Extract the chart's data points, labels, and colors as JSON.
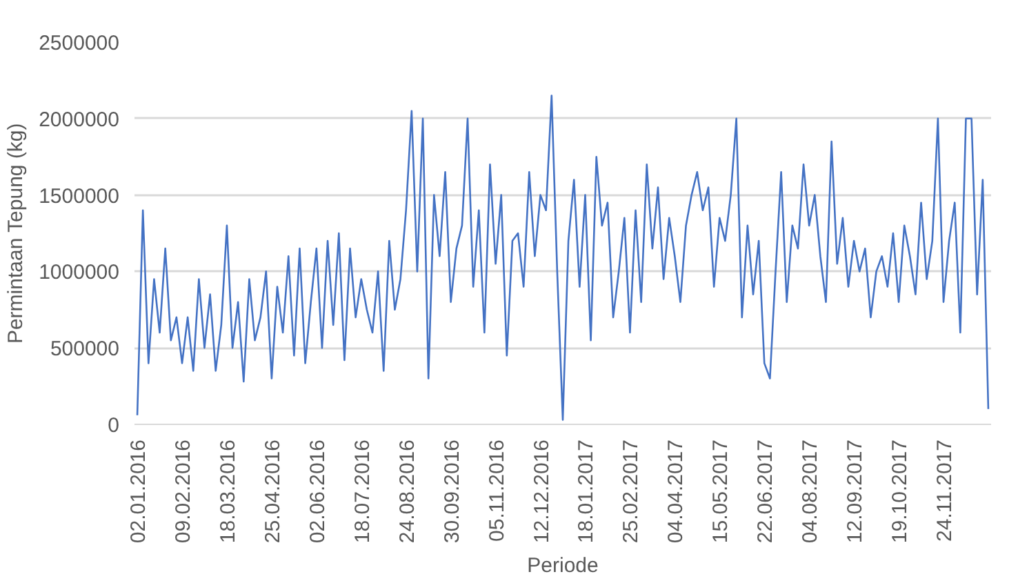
{
  "chart_data": {
    "type": "line",
    "xlabel": "Periode",
    "ylabel": "Permintaan Tepung (kg)",
    "categories": [
      "02.01.2016",
      null,
      null,
      null,
      null,
      null,
      null,
      null,
      "09.02.2016",
      null,
      null,
      null,
      null,
      null,
      null,
      null,
      "18.03.2016",
      null,
      null,
      null,
      null,
      null,
      null,
      null,
      "25.04.2016",
      null,
      null,
      null,
      null,
      null,
      null,
      null,
      "02.06.2016",
      null,
      null,
      null,
      null,
      null,
      null,
      null,
      "18.07.2016",
      null,
      null,
      null,
      null,
      null,
      null,
      null,
      "24.08.2016",
      null,
      null,
      null,
      null,
      null,
      null,
      null,
      "30.09.2016",
      null,
      null,
      null,
      null,
      null,
      null,
      null,
      "05.11.2016",
      null,
      null,
      null,
      null,
      null,
      null,
      null,
      "12.12.2016",
      null,
      null,
      null,
      null,
      null,
      null,
      null,
      "18.01.2017",
      null,
      null,
      null,
      null,
      null,
      null,
      null,
      "25.02.2017",
      null,
      null,
      null,
      null,
      null,
      null,
      null,
      "04.04.2017",
      null,
      null,
      null,
      null,
      null,
      null,
      null,
      "15.05.2017",
      null,
      null,
      null,
      null,
      null,
      null,
      null,
      "22.06.2017",
      null,
      null,
      null,
      null,
      null,
      null,
      null,
      "04.08.2017",
      null,
      null,
      null,
      null,
      null,
      null,
      null,
      "12.09.2017",
      null,
      null,
      null,
      null,
      null,
      null,
      null,
      "19.10.2017",
      null,
      null,
      null,
      null,
      null,
      null,
      null,
      "24.11.2017",
      null,
      null,
      null,
      null,
      null,
      null,
      null,
      null
    ],
    "series": [
      {
        "color": "#4472c4",
        "values": [
          60000,
          1400000,
          400000,
          950000,
          600000,
          1150000,
          550000,
          700000,
          400000,
          700000,
          350000,
          950000,
          500000,
          850000,
          350000,
          650000,
          1300000,
          500000,
          800000,
          280000,
          950000,
          550000,
          700000,
          1000000,
          300000,
          900000,
          600000,
          1100000,
          450000,
          1150000,
          400000,
          800000,
          1150000,
          500000,
          1200000,
          650000,
          1250000,
          420000,
          1150000,
          700000,
          950000,
          750000,
          600000,
          1000000,
          350000,
          1200000,
          750000,
          950000,
          1400000,
          2050000,
          1000000,
          2000000,
          300000,
          1500000,
          1100000,
          1650000,
          800000,
          1150000,
          1300000,
          2000000,
          900000,
          1400000,
          600000,
          1700000,
          1050000,
          1500000,
          450000,
          1200000,
          1250000,
          900000,
          1650000,
          1100000,
          1500000,
          1400000,
          2150000,
          1000000,
          30000,
          1200000,
          1600000,
          900000,
          1500000,
          550000,
          1750000,
          1300000,
          1450000,
          700000,
          1000000,
          1350000,
          600000,
          1400000,
          800000,
          1700000,
          1150000,
          1550000,
          950000,
          1350000,
          1100000,
          800000,
          1300000,
          1500000,
          1650000,
          1400000,
          1550000,
          900000,
          1350000,
          1200000,
          1500000,
          2000000,
          700000,
          1300000,
          850000,
          1200000,
          400000,
          300000,
          1000000,
          1650000,
          800000,
          1300000,
          1150000,
          1700000,
          1300000,
          1500000,
          1100000,
          800000,
          1850000,
          1050000,
          1350000,
          900000,
          1200000,
          1000000,
          1150000,
          700000,
          1000000,
          1100000,
          900000,
          1250000,
          800000,
          1300000,
          1100000,
          850000,
          1450000,
          950000,
          1200000,
          2000000,
          800000,
          1200000,
          1450000,
          600000,
          2000000,
          2000000,
          850000,
          1600000,
          100000
        ]
      }
    ],
    "ylim": [
      0,
      2500000
    ],
    "yticks": [
      0,
      500000,
      1000000,
      1500000,
      2000000,
      2500000
    ],
    "grid": "y"
  }
}
